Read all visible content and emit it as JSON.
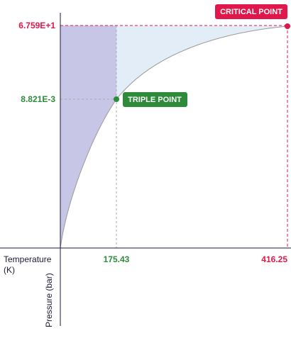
{
  "critical_point": {
    "label": "CRITICAL POINT",
    "temperature": "416.25",
    "pressure": "6.759E+1"
  },
  "triple_point": {
    "label": "TRIPLE POINT",
    "temperature": "175.43",
    "pressure": "8.821E-3"
  },
  "x_axis_label": "Temperature (K)",
  "y_axis_label": "Pressure (bar)"
}
